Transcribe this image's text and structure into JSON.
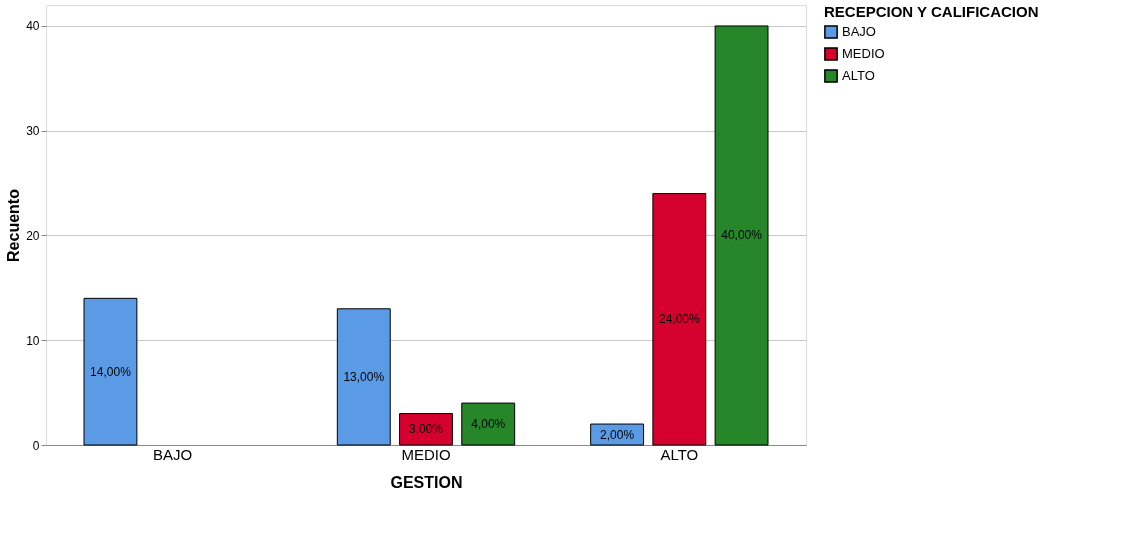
{
  "chart_data": {
    "type": "bar",
    "xlabel": "GESTION",
    "ylabel": "Recuento",
    "legend_title": "RECEPCION Y CALIFICACION",
    "categories": [
      "BAJO",
      "MEDIO",
      "ALTO"
    ],
    "series": [
      {
        "name": "BAJO",
        "color": "#5b9be6",
        "values": [
          14,
          13,
          2
        ],
        "value_labels": [
          "14,00%",
          "13,00%",
          "2,00%"
        ]
      },
      {
        "name": "MEDIO",
        "color": "#d6002f",
        "values": [
          null,
          3,
          24
        ],
        "value_labels": [
          null,
          "3,00%",
          "24,00%"
        ]
      },
      {
        "name": "ALTO",
        "color": "#27862a",
        "values": [
          null,
          4,
          40
        ],
        "value_labels": [
          null,
          "4,00%",
          "40,00%"
        ]
      }
    ],
    "ylim": [
      0,
      42
    ],
    "yticks": [
      0,
      10,
      20,
      30,
      40
    ],
    "grid": "y",
    "legend": "top right"
  }
}
